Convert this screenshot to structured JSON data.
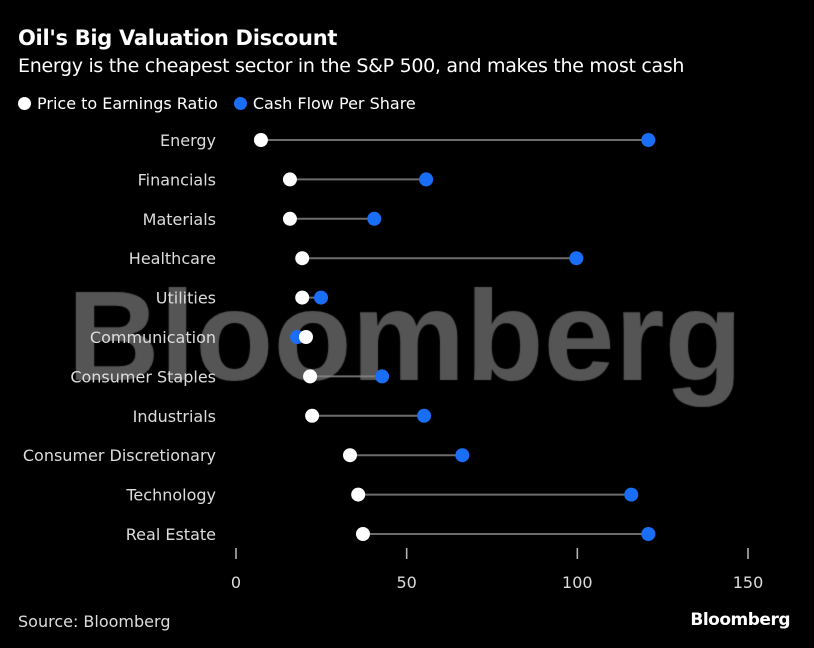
{
  "chart_data": {
    "type": "dumbbell",
    "title": "Oil's Big Valuation Discount",
    "subtitle": "Energy is the cheapest sector in the S&P 500, and makes the most cash",
    "categories": [
      "Energy",
      "Financials",
      "Materials",
      "Healthcare",
      "Utilities",
      "Communication",
      "Consumer Staples",
      "Industrials",
      "Consumer Discretionary",
      "Technology",
      "Real Estate"
    ],
    "series": [
      {
        "name": "Price to Earnings Ratio",
        "color": "#ffffff",
        "values": [
          7.3,
          15.8,
          15.8,
          19.4,
          19.4,
          20.5,
          21.7,
          22.3,
          33.4,
          35.8,
          37.2
        ]
      },
      {
        "name": "Cash Flow Per Share",
        "color": "#1a6ef5",
        "values": [
          120.8,
          55.7,
          40.5,
          99.7,
          24.9,
          17.9,
          42.8,
          55.1,
          66.3,
          115.8,
          120.8
        ]
      }
    ],
    "xlim": [
      0,
      150
    ],
    "xticks": [
      0,
      50,
      100,
      150
    ],
    "xtick_labels": [
      "0",
      "50",
      "100",
      "150"
    ],
    "grid": false,
    "legend_position": "top-left",
    "source": "Source: Bloomberg",
    "watermark": "Bloomberg",
    "logo": "Bloomberg"
  }
}
